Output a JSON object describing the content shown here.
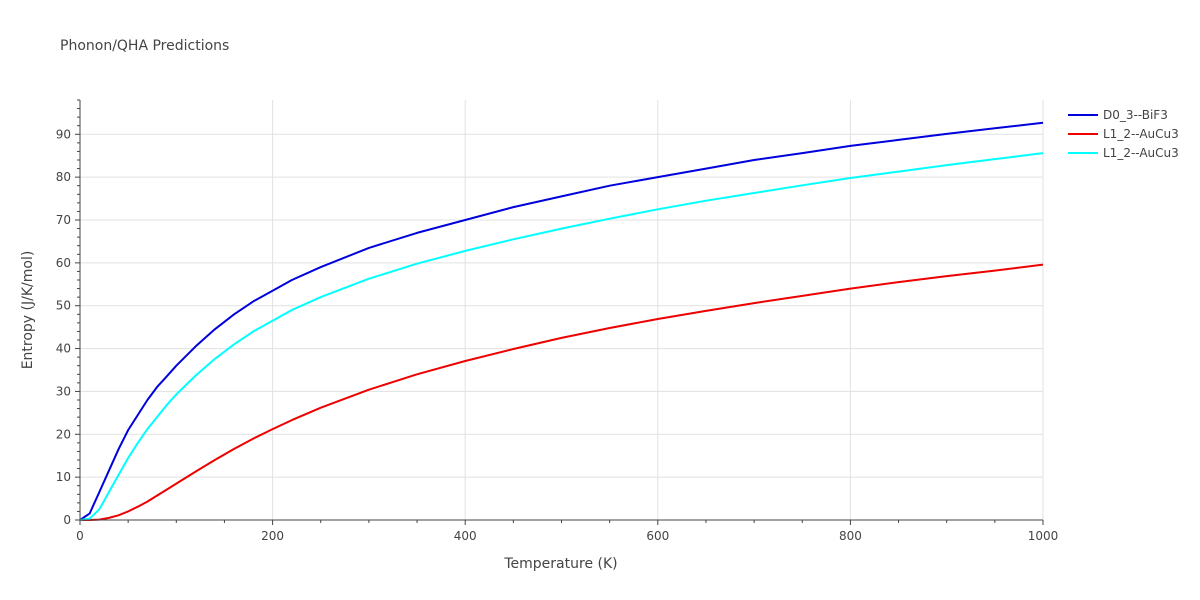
{
  "chart_data": {
    "type": "line",
    "title": "Phonon/QHA Predictions",
    "xlabel": "Temperature (K)",
    "ylabel": "Entropy (J/K/mol)",
    "xlim": [
      0,
      1000
    ],
    "ylim": [
      0,
      98
    ],
    "xticks": [
      0,
      200,
      400,
      600,
      800,
      1000
    ],
    "yticks": [
      0,
      10,
      20,
      30,
      40,
      50,
      60,
      70,
      80,
      90
    ],
    "grid": true,
    "legend_position": "top-right",
    "series": [
      {
        "name": "D0_3--BiF3",
        "color": "#0000dd",
        "x": [
          0,
          10,
          20,
          30,
          40,
          50,
          60,
          70,
          80,
          90,
          100,
          120,
          140,
          160,
          180,
          200,
          220,
          250,
          300,
          350,
          400,
          450,
          500,
          550,
          600,
          650,
          700,
          750,
          800,
          850,
          900,
          950,
          1000
        ],
        "y": [
          0,
          1.5,
          6.5,
          11.5,
          16.5,
          21,
          24.5,
          28,
          31,
          33.5,
          36,
          40.5,
          44.5,
          48,
          51,
          53.5,
          56,
          59,
          63.5,
          67,
          70,
          73,
          75.5,
          78,
          80,
          82,
          84,
          85.6,
          87.3,
          88.7,
          90.1,
          91.4,
          92.7
        ]
      },
      {
        "name": "L1_2--AuCu3",
        "color": "#ee0000",
        "x": [
          0,
          10,
          20,
          30,
          40,
          50,
          60,
          70,
          80,
          90,
          100,
          120,
          140,
          160,
          180,
          200,
          220,
          250,
          300,
          350,
          400,
          450,
          500,
          550,
          600,
          650,
          700,
          750,
          800,
          850,
          900,
          950,
          1000
        ],
        "y": [
          0,
          0,
          0.1,
          0.5,
          1.1,
          2,
          3.1,
          4.3,
          5.7,
          7.1,
          8.5,
          11.3,
          14,
          16.6,
          19,
          21.2,
          23.3,
          26.2,
          30.4,
          34,
          37.1,
          39.9,
          42.5,
          44.8,
          46.9,
          48.8,
          50.6,
          52.3,
          54,
          55.5,
          56.9,
          58.2,
          59.6
        ]
      },
      {
        "name": "L1_2--AuCu3",
        "color": "#00ffff",
        "x": [
          0,
          10,
          20,
          30,
          40,
          50,
          60,
          70,
          80,
          90,
          100,
          120,
          140,
          160,
          180,
          200,
          220,
          250,
          300,
          350,
          400,
          450,
          500,
          550,
          600,
          650,
          700,
          750,
          800,
          850,
          900,
          950,
          1000
        ],
        "y": [
          0,
          0.3,
          2.5,
          6.5,
          10.5,
          14.5,
          18,
          21.2,
          24,
          26.8,
          29.3,
          33.7,
          37.6,
          41,
          44,
          46.5,
          49,
          52,
          56.3,
          59.8,
          62.8,
          65.5,
          68,
          70.3,
          72.5,
          74.5,
          76.3,
          78.1,
          79.8,
          81.3,
          82.8,
          84.2,
          85.6
        ]
      }
    ]
  }
}
